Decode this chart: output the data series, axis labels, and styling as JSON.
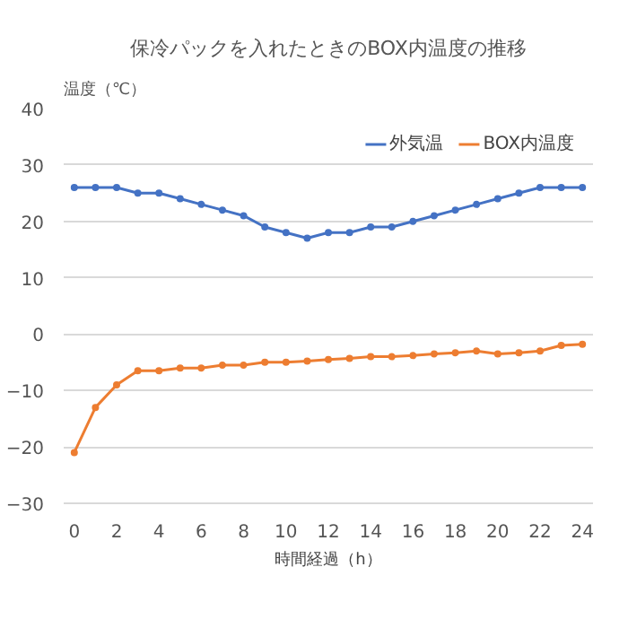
{
  "chart_data": {
    "type": "line",
    "title": "保冷パックを入れたときのBOX内温度の推移",
    "xlabel": "時間経過（h）",
    "ylabel": "温度（℃）",
    "x": [
      0,
      1,
      2,
      3,
      4,
      5,
      6,
      7,
      8,
      9,
      10,
      11,
      12,
      13,
      14,
      15,
      16,
      17,
      18,
      19,
      20,
      21,
      22,
      23,
      24
    ],
    "series": [
      {
        "name": "外気温",
        "color": "#4472c4",
        "values": [
          26,
          26,
          26,
          25,
          25,
          24,
          23,
          22,
          21,
          19,
          18,
          17,
          18,
          18,
          19,
          19,
          20,
          21,
          22,
          23,
          24,
          25,
          26,
          26,
          26
        ]
      },
      {
        "name": "BOX内温度",
        "color": "#ed7d31",
        "values": [
          -21,
          -13,
          -9,
          -6.5,
          -6.5,
          -6,
          -6,
          -5.5,
          -5.5,
          -5,
          -5,
          -4.8,
          -4.5,
          -4.3,
          -4,
          -4,
          -3.8,
          -3.5,
          -3.3,
          -3,
          -3.5,
          -3.3,
          -3,
          -2,
          -1.8
        ]
      }
    ],
    "xlim": [
      -0.5,
      24.5
    ],
    "xticks": [
      0,
      2,
      4,
      6,
      8,
      10,
      12,
      14,
      16,
      18,
      20,
      22,
      24
    ],
    "ylim": [
      -30,
      40
    ],
    "yticks": [
      -30,
      -20,
      -10,
      0,
      10,
      20,
      30,
      40
    ],
    "grid": "y",
    "legend": "top right",
    "marker": "circle",
    "line_style": "solid"
  }
}
